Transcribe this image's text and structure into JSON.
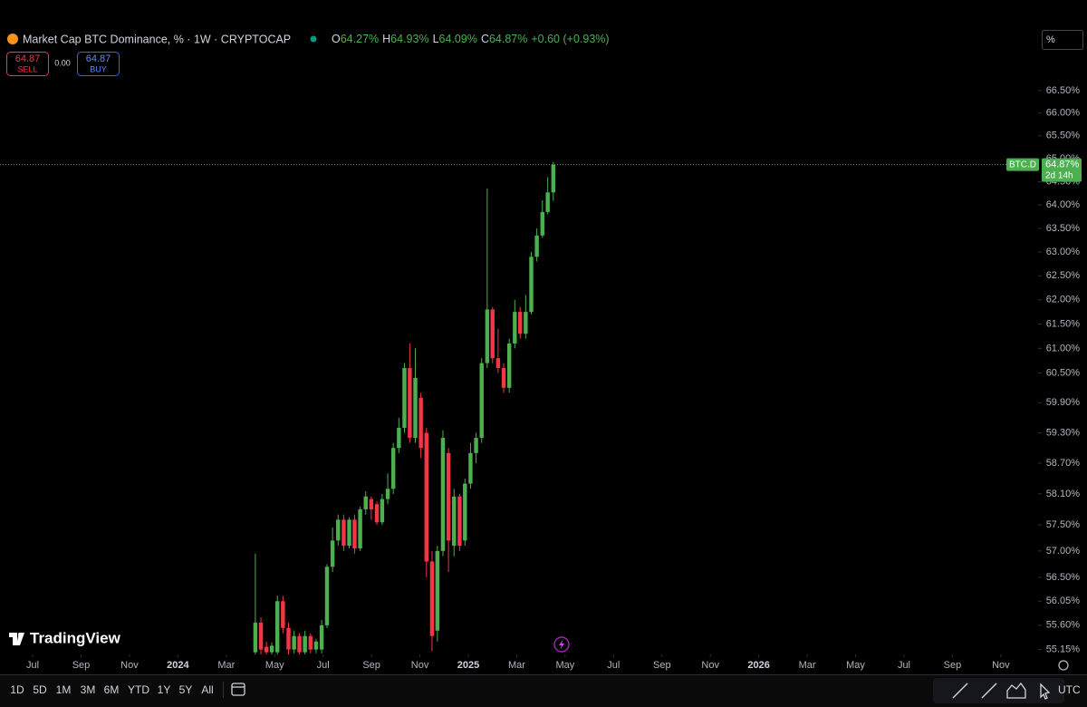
{
  "ui": {
    "symbol_title": "Market Cap BTC Dominance, % · 1W · CRYPTOCAP",
    "ohlc": [
      "O",
      "64.27%",
      "H",
      "64.93%",
      "L",
      "64.09%",
      "C",
      "64.87%",
      "+0.60 (+0.93%)"
    ],
    "sell_price": "64.87",
    "sell_label": "SELL",
    "spread": "0.00",
    "buy_price": "64.87",
    "buy_label": "BUY",
    "scale_mode": "%",
    "price_tag_symbol": "BTC.D",
    "price_tag_value": "64.87%",
    "price_tag_countdown": "2d 14h",
    "logo": "TradingView",
    "ranges": [
      "1D",
      "5D",
      "1M",
      "3M",
      "6M",
      "YTD",
      "1Y",
      "5Y",
      "All"
    ],
    "timezone": "UTC"
  },
  "chart_data": {
    "type": "candlestick",
    "log": true,
    "up_color": "#4caf50",
    "down_color": "#f23645",
    "last_line_color": "#4caf50",
    "xlim": [
      -1.35,
      41.54
    ],
    "xticks": [
      {
        "value": 0,
        "label": "Jul"
      },
      {
        "value": 2,
        "label": "Sep"
      },
      {
        "value": 4,
        "label": "Nov"
      },
      {
        "value": 6,
        "label": "2024"
      },
      {
        "value": 8,
        "label": "Mar"
      },
      {
        "value": 10,
        "label": "May"
      },
      {
        "value": 12,
        "label": "Jul"
      },
      {
        "value": 14,
        "label": "Sep"
      },
      {
        "value": 16,
        "label": "Nov"
      },
      {
        "value": 18,
        "label": "2025"
      },
      {
        "value": 20,
        "label": "Mar"
      },
      {
        "value": 22,
        "label": "May"
      },
      {
        "value": 24,
        "label": "Jul"
      },
      {
        "value": 26,
        "label": "Sep"
      },
      {
        "value": 28,
        "label": "Nov"
      },
      {
        "value": 30,
        "label": "2026"
      },
      {
        "value": 32,
        "label": "Mar"
      },
      {
        "value": 34,
        "label": "May"
      },
      {
        "value": 36,
        "label": "Jul"
      },
      {
        "value": 38,
        "label": "Sep"
      },
      {
        "value": 40,
        "label": "Nov"
      }
    ],
    "ylim": [
      55.06,
      66.74
    ],
    "yticks": [
      {
        "value": 66.5,
        "label": "66.50%"
      },
      {
        "value": 66,
        "label": "66.00%"
      },
      {
        "value": 65.5,
        "label": "65.50%"
      },
      {
        "value": 65,
        "label": "65.00%"
      },
      {
        "value": 64.5,
        "label": "64.50%"
      },
      {
        "value": 64,
        "label": "64.00%"
      },
      {
        "value": 63.5,
        "label": "63.50%"
      },
      {
        "value": 63,
        "label": "63.00%"
      },
      {
        "value": 62.5,
        "label": "62.50%"
      },
      {
        "value": 62,
        "label": "62.00%"
      },
      {
        "value": 61.5,
        "label": "61.50%"
      },
      {
        "value": 61,
        "label": "61.00%"
      },
      {
        "value": 60.5,
        "label": "60.50%"
      },
      {
        "value": 59.9,
        "label": "59.90%"
      },
      {
        "value": 59.3,
        "label": "59.30%"
      },
      {
        "value": 58.7,
        "label": "58.70%"
      },
      {
        "value": 58.1,
        "label": "58.10%"
      },
      {
        "value": 57.5,
        "label": "57.50%"
      },
      {
        "value": 57,
        "label": "57.00%"
      },
      {
        "value": 56.5,
        "label": "56.50%"
      },
      {
        "value": 56.05,
        "label": "56.05%"
      },
      {
        "value": 55.6,
        "label": "55.60%"
      },
      {
        "value": 55.15,
        "label": "55.15%"
      }
    ],
    "x": [
      9.2,
      9.43,
      9.66,
      9.88,
      10.11,
      10.34,
      10.57,
      10.8,
      11.02,
      11.25,
      11.48,
      11.71,
      11.94,
      12.16,
      12.39,
      12.62,
      12.85,
      13.08,
      13.3,
      13.53,
      13.76,
      13.99,
      14.22,
      14.44,
      14.67,
      14.9,
      15.13,
      15.36,
      15.58,
      15.81,
      16.04,
      16.27,
      16.5,
      16.72,
      16.95,
      17.18,
      17.41,
      17.64,
      17.86,
      18.09,
      18.32,
      18.55,
      18.78,
      19.0,
      19.23,
      19.46,
      19.69,
      19.92,
      20.14,
      20.37,
      20.6,
      20.83,
      21.06,
      21.28,
      21.51
    ],
    "open": [
      55.1,
      55.65,
      55.2,
      55.1,
      55.1,
      56.05,
      55.55,
      55.15,
      55.4,
      55.1,
      55.4,
      55.15,
      55.15,
      55.6,
      56.7,
      57.2,
      57.6,
      57.1,
      57.6,
      57.05,
      57.8,
      58.0,
      57.9,
      57.55,
      58.0,
      58.2,
      59.0,
      59.4,
      60.6,
      59.2,
      60.0,
      59.3,
      56.8,
      55.5,
      57.0,
      58.9,
      57.1,
      58.05,
      57.2,
      58.3,
      58.9,
      59.2,
      60.7,
      61.8,
      60.8,
      60.6,
      60.2,
      61.1,
      61.75,
      61.3,
      61.75,
      62.9,
      63.35,
      63.85,
      64.27
    ],
    "high": [
      56.95,
      55.75,
      55.3,
      55.28,
      56.15,
      56.15,
      55.65,
      55.5,
      55.45,
      55.5,
      55.45,
      55.35,
      55.7,
      56.75,
      57.45,
      57.7,
      57.7,
      57.65,
      57.7,
      57.85,
      58.15,
      58.05,
      57.95,
      58.1,
      58.5,
      59.1,
      59.6,
      60.7,
      61.1,
      61.0,
      60.1,
      59.4,
      57.0,
      57.1,
      59.35,
      59.0,
      58.2,
      58.1,
      58.4,
      59.1,
      59.3,
      60.8,
      64.35,
      61.85,
      61.4,
      60.7,
      61.2,
      62.0,
      61.85,
      62.1,
      63.0,
      63.5,
      64.1,
      64.6,
      64.93
    ],
    "low": [
      55.05,
      55.05,
      55.05,
      55.05,
      55.05,
      55.45,
      55.05,
      55.08,
      55.05,
      55.05,
      55.08,
      55.08,
      55.08,
      55.55,
      56.6,
      57.1,
      57.0,
      57.05,
      56.95,
      57.0,
      57.7,
      57.6,
      57.5,
      57.5,
      57.9,
      58.1,
      58.9,
      59.3,
      59.1,
      59.1,
      58.8,
      56.5,
      55.12,
      55.3,
      56.9,
      56.6,
      56.9,
      57.0,
      57.1,
      58.2,
      58.7,
      59.1,
      60.6,
      60.7,
      60.5,
      60.1,
      60.1,
      61.0,
      61.2,
      61.2,
      61.7,
      62.8,
      63.3,
      63.8,
      64.09
    ],
    "close": [
      55.65,
      55.15,
      55.1,
      55.22,
      56.05,
      55.55,
      55.15,
      55.4,
      55.1,
      55.4,
      55.15,
      55.3,
      55.6,
      56.7,
      57.2,
      57.6,
      57.1,
      57.6,
      57.05,
      57.8,
      58.05,
      57.8,
      57.55,
      58.0,
      58.2,
      59.0,
      59.4,
      60.6,
      59.2,
      60.4,
      59.0,
      56.8,
      55.4,
      57.0,
      59.2,
      57.2,
      58.05,
      57.1,
      58.3,
      58.9,
      59.2,
      60.7,
      61.8,
      60.8,
      60.6,
      60.2,
      61.1,
      61.75,
      61.3,
      61.75,
      62.9,
      63.35,
      63.85,
      64.27,
      64.87
    ]
  }
}
